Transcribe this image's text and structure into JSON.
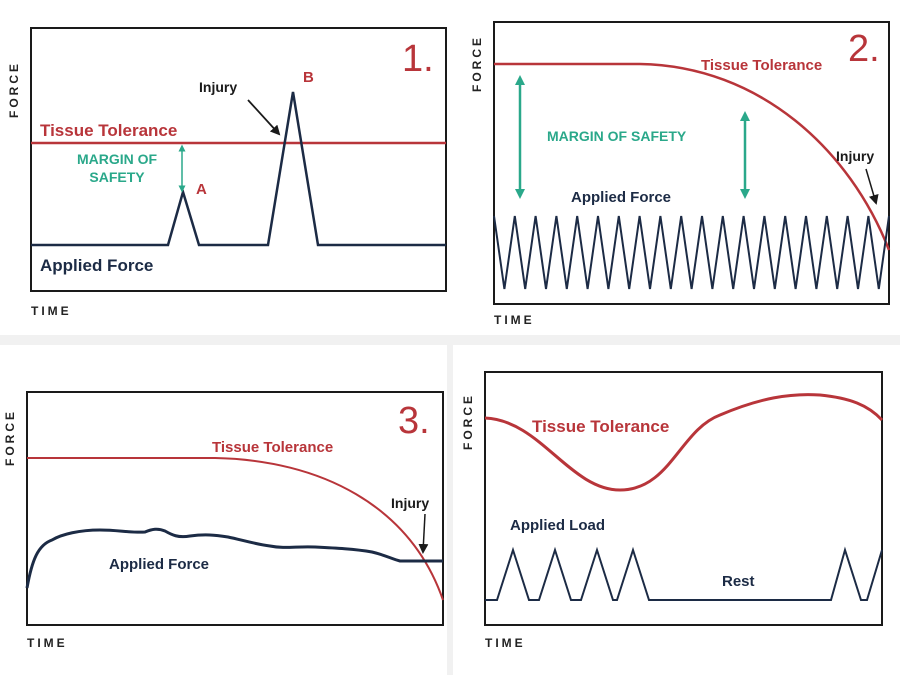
{
  "colors": {
    "tolerance": "#b8353a",
    "force": "#1c2b45",
    "margin": "#2aa88a",
    "frame": "#1a1a1a",
    "background": "#ffffff",
    "divider": "#f1f1f1"
  },
  "axis_labels": {
    "y": "FORCE",
    "x": "TIME"
  },
  "panels": {
    "p1": {
      "number": "1.",
      "tolerance_label": "Tissue Tolerance",
      "force_label": "Applied Force",
      "margin_label_line1": "MARGIN OF",
      "margin_label_line2": "SAFETY",
      "injury_label": "Injury",
      "peak_a": "A",
      "peak_b": "B"
    },
    "p2": {
      "number": "2.",
      "tolerance_label": "Tissue Tolerance",
      "force_label": "Applied Force",
      "margin_label": "MARGIN OF SAFETY",
      "injury_label": "Injury"
    },
    "p3": {
      "number": "3.",
      "tolerance_label": "Tissue Tolerance",
      "force_label": "Applied Force",
      "injury_label": "Injury"
    },
    "p4": {
      "tolerance_label": "Tissue Tolerance",
      "load_label": "Applied Load",
      "rest_label": "Rest"
    }
  }
}
